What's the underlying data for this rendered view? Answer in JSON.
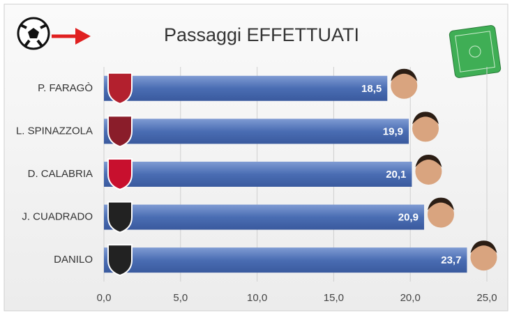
{
  "chart_data": {
    "type": "bar",
    "title": "Passaggi EFFETTUATI",
    "categories": [
      "P. FARAGÒ",
      "L. SPINAZZOLA",
      "D. CALABRIA",
      "J. CUADRADO",
      "DANILO"
    ],
    "values": [
      18.5,
      19.9,
      20.1,
      20.9,
      23.7
    ],
    "value_labels": [
      "18,5",
      "19,9",
      "20,1",
      "20,9",
      "23,7"
    ],
    "color": "#4a6db3",
    "xlim": [
      0,
      25
    ],
    "xticks": [
      {
        "value": 0,
        "label": "0,0"
      },
      {
        "value": 5,
        "label": "5,0"
      },
      {
        "value": 10,
        "label": "10,0"
      },
      {
        "value": 15,
        "label": "15,0"
      },
      {
        "value": 20,
        "label": "20,0"
      },
      {
        "value": 25,
        "label": "25,0"
      }
    ],
    "grid": true
  }
}
